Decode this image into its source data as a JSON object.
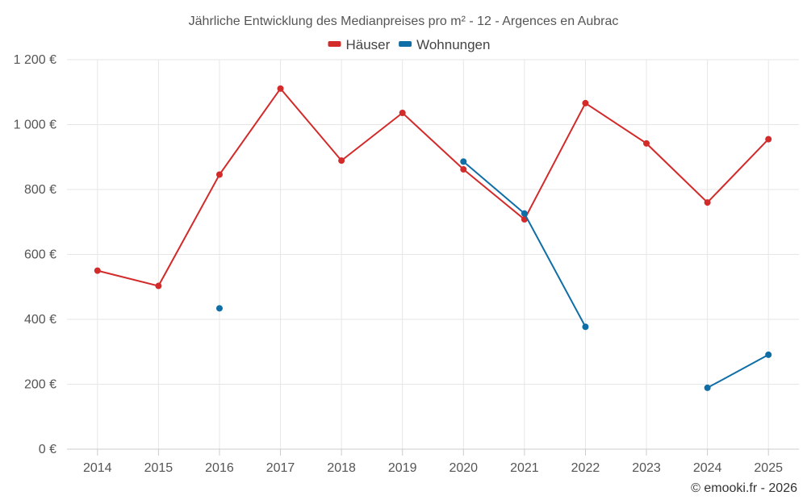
{
  "chart_data": {
    "type": "line",
    "title": "Jährliche Entwicklung des Medianpreises pro m² - 12 - Argences en Aubrac",
    "xlabel": "",
    "ylabel": "",
    "categories": [
      "2014",
      "2015",
      "2016",
      "2017",
      "2018",
      "2019",
      "2020",
      "2021",
      "2022",
      "2023",
      "2024",
      "2025"
    ],
    "ylim": [
      0,
      1200
    ],
    "y_ticks": [
      0,
      200,
      400,
      600,
      800,
      1000,
      1200
    ],
    "y_tick_labels": [
      "0 €",
      "200 €",
      "400 €",
      "600 €",
      "800 €",
      "1 000 €",
      "1 200 €"
    ],
    "grid": true,
    "legend_position": "top-center",
    "series": [
      {
        "name": "Häuser",
        "color": "#d32a2a",
        "values": [
          550,
          503,
          846,
          1111,
          889,
          1036,
          862,
          708,
          1066,
          942,
          760,
          955
        ]
      },
      {
        "name": "Wohnungen",
        "color": "#0f6ea6",
        "values": [
          null,
          null,
          434,
          null,
          null,
          null,
          886,
          726,
          377,
          null,
          189,
          291
        ]
      }
    ]
  },
  "credit": "© emooki.fr - 2026"
}
